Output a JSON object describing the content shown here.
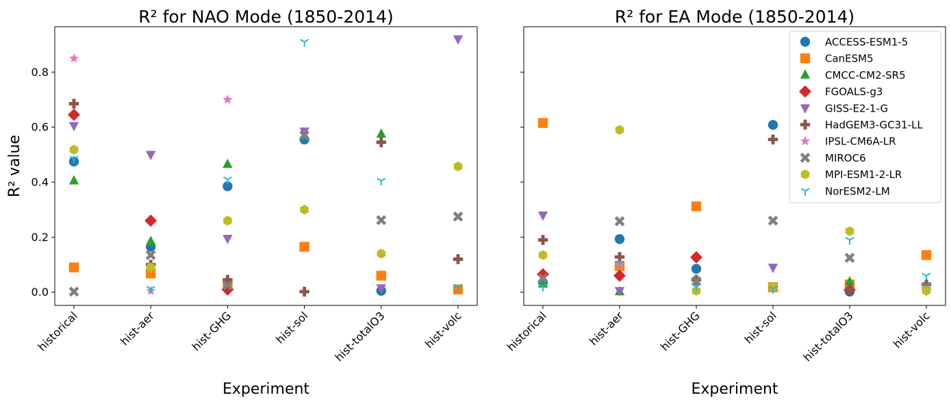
{
  "chart_data": [
    {
      "type": "scatter",
      "title": "R² for NAO Mode (1850-2014)",
      "xlabel": "Experiment",
      "ylabel": "R² value",
      "categories": [
        "historical",
        "hist-aer",
        "hist-GHG",
        "hist-sol",
        "hist-totalO3",
        "hist-volc"
      ],
      "yticks": [
        "0.0",
        "0.2",
        "0.4",
        "0.6",
        "0.8"
      ],
      "ylim": [
        -0.048,
        0.965
      ],
      "grid": false,
      "series": [
        {
          "name": "ACCESS-ESM1-5",
          "color": "#1f77b4",
          "marker": "circle",
          "values": [
            0.475,
            0.165,
            0.385,
            0.555,
            0.005,
            null
          ]
        },
        {
          "name": "CanESM5",
          "color": "#ff7f0e",
          "marker": "square",
          "values": [
            0.09,
            0.068,
            0.03,
            0.165,
            0.06,
            0.01
          ]
        },
        {
          "name": "CMCC-CM2-SR5",
          "color": "#2ca02c",
          "marker": "triangle-up",
          "values": [
            0.405,
            0.185,
            0.465,
            null,
            0.575,
            null
          ]
        },
        {
          "name": "FGOALS-g3",
          "color": "#d62728",
          "marker": "diamond",
          "values": [
            0.645,
            0.26,
            0.01,
            null,
            null,
            null
          ]
        },
        {
          "name": "GISS-E2-1-G",
          "color": "#9467bd",
          "marker": "triangle-down",
          "values": [
            0.605,
            0.5,
            0.195,
            0.585,
            0.015,
            0.92
          ]
        },
        {
          "name": "HadGEM3-GC31-LL",
          "color": "#8c564b",
          "marker": "plus",
          "values": [
            0.685,
            0.1,
            0.045,
            0.002,
            0.545,
            0.12
          ]
        },
        {
          "name": "IPSL-CM6A-LR",
          "color": "#e377c2",
          "marker": "star",
          "values": [
            0.85,
            0.005,
            0.7,
            null,
            null,
            null
          ]
        },
        {
          "name": "MIROC6",
          "color": "#7f7f7f",
          "marker": "x",
          "values": [
            0.002,
            0.135,
            0.025,
            0.57,
            0.262,
            0.275
          ]
        },
        {
          "name": "MPI-ESM1-2-LR",
          "color": "#bcbd22",
          "marker": "hexagon",
          "values": [
            0.518,
            0.09,
            0.26,
            0.3,
            0.14,
            0.457
          ]
        },
        {
          "name": "NorESM2-LM",
          "color": "#17becf",
          "marker": "tri-down",
          "values": [
            0.485,
            0.012,
            0.41,
            0.91,
            0.405,
            0.02
          ]
        }
      ]
    },
    {
      "type": "scatter",
      "title": "R² for EA Mode (1850-2014)",
      "xlabel": "Experiment",
      "ylabel": "",
      "categories": [
        "historical",
        "hist-aer",
        "hist-GHG",
        "hist-sol",
        "hist-totalO3",
        "hist-volc"
      ],
      "ylim": [
        -0.048,
        0.965
      ],
      "shared_y": true,
      "grid": false,
      "legend": "top-right",
      "series": [
        {
          "name": "ACCESS-ESM1-5",
          "color": "#1f77b4",
          "marker": "circle",
          "values": [
            0.035,
            0.193,
            0.085,
            0.608,
            0.002,
            null
          ]
        },
        {
          "name": "CanESM5",
          "color": "#ff7f0e",
          "marker": "square",
          "values": [
            0.615,
            0.095,
            0.312,
            0.018,
            0.028,
            0.135
          ]
        },
        {
          "name": "CMCC-CM2-SR5",
          "color": "#2ca02c",
          "marker": "triangle-up",
          "values": [
            0.03,
            0.002,
            null,
            null,
            0.038,
            null
          ]
        },
        {
          "name": "FGOALS-g3",
          "color": "#d62728",
          "marker": "diamond",
          "values": [
            0.065,
            0.06,
            0.127,
            null,
            0.008,
            null
          ]
        },
        {
          "name": "GISS-E2-1-G",
          "color": "#9467bd",
          "marker": "triangle-down",
          "values": [
            0.28,
            0.005,
            0.04,
            0.09,
            null,
            0.005
          ]
        },
        {
          "name": "HadGEM3-GC31-LL",
          "color": "#8c564b",
          "marker": "plus",
          "values": [
            0.19,
            0.128,
            0.045,
            0.555,
            0.01,
            0.028
          ]
        },
        {
          "name": "IPSL-CM6A-LR",
          "color": "#e377c2",
          "marker": "star",
          "values": [
            null,
            0.1,
            null,
            null,
            null,
            null
          ]
        },
        {
          "name": "MIROC6",
          "color": "#7f7f7f",
          "marker": "x",
          "values": [
            0.05,
            0.258,
            0.04,
            0.26,
            0.125,
            0.02
          ]
        },
        {
          "name": "MPI-ESM1-2-LR",
          "color": "#bcbd22",
          "marker": "hexagon",
          "values": [
            0.135,
            0.59,
            0.005,
            0.02,
            0.222,
            0.005
          ]
        },
        {
          "name": "NorESM2-LM",
          "color": "#17becf",
          "marker": "tri-down",
          "values": [
            0.02,
            0.105,
            0.02,
            0.012,
            0.19,
            0.06
          ]
        }
      ]
    }
  ]
}
